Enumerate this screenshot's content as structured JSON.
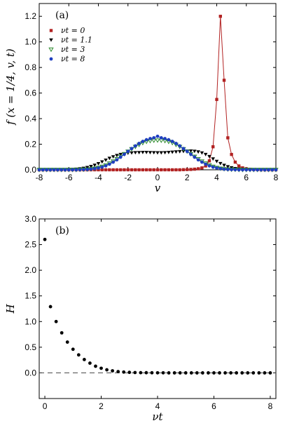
{
  "chart_data": [
    {
      "type": "line",
      "panel_label": "(a)",
      "xlabel": "v",
      "ylabel": "f (x = 1/4, v, t)",
      "xlim": [
        -8,
        8
      ],
      "ylim": [
        0,
        1.3
      ],
      "xticks": [
        "-8",
        "-6",
        "-4",
        "-2",
        "0",
        "2",
        "4",
        "6",
        "8"
      ],
      "yticks": [
        "0.0",
        "0.2",
        "0.4",
        "0.6",
        "0.8",
        "1.0",
        "1.2"
      ],
      "legend_placement": "top-left",
      "series": [
        {
          "name": "νt = 0",
          "color": "#b22222",
          "marker": "square",
          "line": true,
          "x": [
            -8,
            -7.75,
            -7.5,
            -7.25,
            -7,
            -6.75,
            -6.5,
            -6.25,
            -6,
            -5.75,
            -5.5,
            -5.25,
            -5,
            -4.75,
            -4.5,
            -4.25,
            -4,
            -3.75,
            -3.5,
            -3.25,
            -3,
            -2.75,
            -2.5,
            -2.25,
            -2,
            -1.75,
            -1.5,
            -1.25,
            -1,
            -0.75,
            -0.5,
            -0.25,
            0,
            0.25,
            0.5,
            0.75,
            1,
            1.25,
            1.5,
            1.75,
            2,
            2.25,
            2.5,
            2.75,
            3,
            3.25,
            3.5,
            3.75,
            4,
            4.25,
            4.5,
            4.75,
            5,
            5.25,
            5.5,
            5.75,
            6,
            6.25,
            6.5,
            6.75,
            7,
            7.25,
            7.5,
            7.75,
            8
          ],
          "y": [
            0,
            0,
            0,
            0,
            0,
            0,
            0,
            0,
            0,
            0,
            0,
            0,
            0,
            0,
            0,
            0,
            0,
            0,
            0,
            0,
            0,
            0,
            0,
            0,
            0,
            0,
            0,
            0,
            0,
            0,
            0,
            0,
            0,
            0,
            0,
            0,
            0,
            0,
            0,
            0.001,
            0.002,
            0.003,
            0.005,
            0.008,
            0.015,
            0.03,
            0.07,
            0.18,
            0.55,
            1.2,
            0.7,
            0.25,
            0.12,
            0.06,
            0.03,
            0.015,
            0.008,
            0.004,
            0.002,
            0.001,
            0,
            0,
            0,
            0,
            0
          ]
        },
        {
          "name": "νt = 1.1",
          "color": "#000000",
          "marker": "triangle-down",
          "line": false,
          "x": [
            -8,
            -7.75,
            -7.5,
            -7.25,
            -7,
            -6.75,
            -6.5,
            -6.25,
            -6,
            -5.75,
            -5.5,
            -5.25,
            -5,
            -4.75,
            -4.5,
            -4.25,
            -4,
            -3.75,
            -3.5,
            -3.25,
            -3,
            -2.75,
            -2.5,
            -2.25,
            -2,
            -1.75,
            -1.5,
            -1.25,
            -1,
            -0.75,
            -0.5,
            -0.25,
            0,
            0.25,
            0.5,
            0.75,
            1,
            1.25,
            1.5,
            1.75,
            2,
            2.25,
            2.5,
            2.75,
            3,
            3.25,
            3.5,
            3.75,
            4,
            4.25,
            4.5,
            4.75,
            5,
            5.25,
            5.5,
            5.75,
            6,
            6.25,
            6.5,
            6.75,
            7,
            7.25,
            7.5,
            7.75,
            8
          ],
          "y": [
            0,
            0,
            0,
            0,
            0,
            0,
            0,
            0.001,
            0.002,
            0.003,
            0.005,
            0.008,
            0.012,
            0.018,
            0.026,
            0.036,
            0.048,
            0.062,
            0.076,
            0.09,
            0.102,
            0.112,
            0.12,
            0.126,
            0.13,
            0.132,
            0.134,
            0.135,
            0.136,
            0.136,
            0.135,
            0.134,
            0.133,
            0.133,
            0.134,
            0.136,
            0.138,
            0.14,
            0.142,
            0.144,
            0.146,
            0.147,
            0.145,
            0.14,
            0.132,
            0.12,
            0.104,
            0.085,
            0.066,
            0.049,
            0.035,
            0.024,
            0.016,
            0.01,
            0.006,
            0.004,
            0.002,
            0.001,
            0,
            0,
            0,
            0,
            0,
            0,
            0
          ]
        },
        {
          "name": "νt = 3",
          "color": "#2e8b2e",
          "marker": "triangle-down-open",
          "line": false,
          "x": [
            -8,
            -7.75,
            -7.5,
            -7.25,
            -7,
            -6.75,
            -6.5,
            -6.25,
            -6,
            -5.75,
            -5.5,
            -5.25,
            -5,
            -4.75,
            -4.5,
            -4.25,
            -4,
            -3.75,
            -3.5,
            -3.25,
            -3,
            -2.75,
            -2.5,
            -2.25,
            -2,
            -1.75,
            -1.5,
            -1.25,
            -1,
            -0.75,
            -0.5,
            -0.25,
            0,
            0.25,
            0.5,
            0.75,
            1,
            1.25,
            1.5,
            1.75,
            2,
            2.25,
            2.5,
            2.75,
            3,
            3.25,
            3.5,
            3.75,
            4,
            4.25,
            4.5,
            4.75,
            5,
            5.25,
            5.5,
            5.75,
            6,
            6.25,
            6.5,
            6.75,
            7,
            7.25,
            7.5,
            7.75,
            8
          ],
          "y": [
            0,
            0,
            0,
            0,
            0,
            0,
            0,
            0,
            0,
            0,
            0,
            0.001,
            0.002,
            0.003,
            0.006,
            0.01,
            0.016,
            0.025,
            0.036,
            0.05,
            0.066,
            0.084,
            0.103,
            0.123,
            0.143,
            0.162,
            0.18,
            0.196,
            0.21,
            0.22,
            0.226,
            0.229,
            0.23,
            0.229,
            0.226,
            0.22,
            0.21,
            0.196,
            0.18,
            0.162,
            0.143,
            0.123,
            0.103,
            0.084,
            0.066,
            0.05,
            0.036,
            0.025,
            0.016,
            0.01,
            0.006,
            0.003,
            0.002,
            0.001,
            0,
            0,
            0,
            0,
            0,
            0,
            0,
            0,
            0,
            0,
            0
          ]
        },
        {
          "name": "νt = 8",
          "color": "#1f3fbf",
          "marker": "circle",
          "line": true,
          "x": [
            -8,
            -7.75,
            -7.5,
            -7.25,
            -7,
            -6.75,
            -6.5,
            -6.25,
            -6,
            -5.75,
            -5.5,
            -5.25,
            -5,
            -4.75,
            -4.5,
            -4.25,
            -4,
            -3.75,
            -3.5,
            -3.25,
            -3,
            -2.75,
            -2.5,
            -2.25,
            -2,
            -1.75,
            -1.5,
            -1.25,
            -1,
            -0.75,
            -0.5,
            -0.25,
            0,
            0.25,
            0.5,
            0.75,
            1,
            1.25,
            1.5,
            1.75,
            2,
            2.25,
            2.5,
            2.75,
            3,
            3.25,
            3.5,
            3.75,
            4,
            4.25,
            4.5,
            4.75,
            5,
            5.25,
            5.5,
            5.75,
            6,
            6.25,
            6.5,
            6.75,
            7,
            7.25,
            7.5,
            7.75,
            8
          ],
          "y": [
            0,
            0,
            0,
            0,
            0,
            0,
            0,
            0,
            0,
            0,
            0,
            0.001,
            0.002,
            0.003,
            0.005,
            0.009,
            0.014,
            0.021,
            0.031,
            0.044,
            0.06,
            0.078,
            0.099,
            0.121,
            0.144,
            0.166,
            0.187,
            0.206,
            0.222,
            0.235,
            0.244,
            0.25,
            0.262,
            0.25,
            0.244,
            0.235,
            0.222,
            0.206,
            0.187,
            0.166,
            0.144,
            0.121,
            0.099,
            0.078,
            0.06,
            0.044,
            0.031,
            0.021,
            0.014,
            0.009,
            0.005,
            0.003,
            0.002,
            0.001,
            0,
            0,
            0,
            0,
            0,
            0,
            0,
            0,
            0,
            0,
            0
          ]
        }
      ]
    },
    {
      "type": "scatter",
      "panel_label": "(b)",
      "xlabel": "νt",
      "ylabel": "H",
      "xlim": [
        -0.2,
        8.2
      ],
      "ylim": [
        -0.5,
        3.0
      ],
      "xticks": [
        "0",
        "2",
        "4",
        "6",
        "8"
      ],
      "yticks": [
        "0.0",
        "0.5",
        "1.0",
        "1.5",
        "2.0",
        "2.5",
        "3.0"
      ],
      "reference_line": {
        "y": 0,
        "style": "dashed"
      },
      "series": [
        {
          "name": "",
          "color": "#000000",
          "marker": "circle",
          "x": [
            0,
            0.2,
            0.4,
            0.6,
            0.8,
            1.0,
            1.2,
            1.4,
            1.6,
            1.8,
            2.0,
            2.2,
            2.4,
            2.6,
            2.8,
            3.0,
            3.2,
            3.4,
            3.6,
            3.8,
            4.0,
            4.2,
            4.4,
            4.6,
            4.8,
            5.0,
            5.2,
            5.4,
            5.6,
            5.8,
            6.0,
            6.2,
            6.4,
            6.6,
            6.8,
            7.0,
            7.2,
            7.4,
            7.6,
            7.8,
            8.0
          ],
          "y": [
            2.6,
            1.29,
            1.0,
            0.78,
            0.6,
            0.46,
            0.35,
            0.26,
            0.19,
            0.13,
            0.09,
            0.06,
            0.04,
            0.025,
            0.016,
            0.01,
            0.006,
            0.004,
            0.003,
            0.002,
            0.001,
            0.001,
            0,
            0,
            0,
            0,
            0,
            0,
            0,
            0,
            0,
            0,
            0,
            0,
            0,
            0,
            0,
            0,
            0,
            0,
            0
          ]
        }
      ]
    }
  ]
}
